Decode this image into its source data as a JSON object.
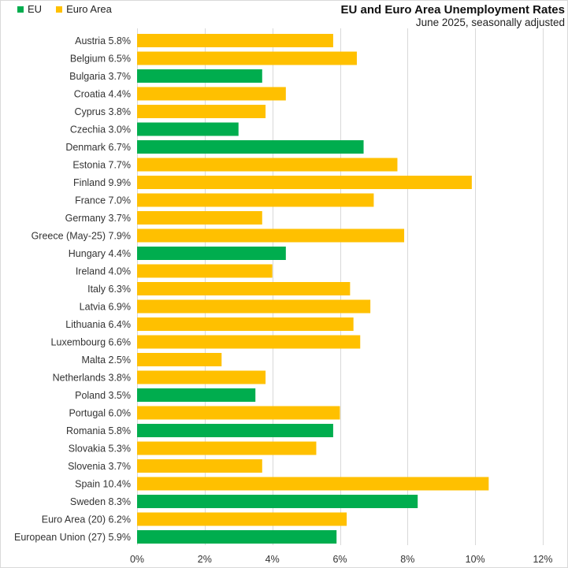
{
  "chart_data": {
    "type": "bar",
    "orientation": "horizontal",
    "title": "EU and Euro Area Unemployment Rates",
    "subtitle": "June 2025, seasonally adjusted",
    "xlabel": "",
    "ylabel": "",
    "xlim": [
      0,
      12
    ],
    "x_ticks": [
      0,
      2,
      4,
      6,
      8,
      10,
      12
    ],
    "x_tick_labels": [
      "0%",
      "2%",
      "4%",
      "6%",
      "8%",
      "10%",
      "12%"
    ],
    "grid": "vertical",
    "legend_position": "top-left",
    "legend": [
      {
        "key": "EU",
        "label": "EU",
        "color": "#00ad4e"
      },
      {
        "key": "EA",
        "label": "Euro Area",
        "color": "#ffc000"
      }
    ],
    "categories": [
      "Austria 5.8%",
      "Belgium 6.5%",
      "Bulgaria 3.7%",
      "Croatia 4.4%",
      "Cyprus 3.8%",
      "Czechia 3.0%",
      "Denmark 6.7%",
      "Estonia 7.7%",
      "Finland 9.9%",
      "France 7.0%",
      "Germany 3.7%",
      "Greece (May-25) 7.9%",
      "Hungary 4.4%",
      "Ireland 4.0%",
      "Italy 6.3%",
      "Latvia 6.9%",
      "Lithuania 6.4%",
      "Luxembourg 6.6%",
      "Malta 2.5%",
      "Netherlands 3.8%",
      "Poland 3.5%",
      "Portugal 6.0%",
      "Romania 5.8%",
      "Slovakia 5.3%",
      "Slovenia 3.7%",
      "Spain 10.4%",
      "Sweden 8.3%",
      "Euro Area (20) 6.2%",
      "European Union (27) 5.9%"
    ],
    "values": [
      5.8,
      6.5,
      3.7,
      4.4,
      3.8,
      3.0,
      6.7,
      7.7,
      9.9,
      7.0,
      3.7,
      7.9,
      4.4,
      4.0,
      6.3,
      6.9,
      6.4,
      6.6,
      2.5,
      3.8,
      3.5,
      6.0,
      5.8,
      5.3,
      3.7,
      10.4,
      8.3,
      6.2,
      5.9
    ],
    "groups": [
      "EA",
      "EA",
      "EU",
      "EA",
      "EA",
      "EU",
      "EU",
      "EA",
      "EA",
      "EA",
      "EA",
      "EA",
      "EU",
      "EA",
      "EA",
      "EA",
      "EA",
      "EA",
      "EA",
      "EA",
      "EU",
      "EA",
      "EU",
      "EA",
      "EA",
      "EA",
      "EU",
      "EA",
      "EU"
    ],
    "unit": "%"
  },
  "colors": {
    "eu": "#00ad4e",
    "euro_area": "#ffc000",
    "grid": "#d9d9d9"
  }
}
